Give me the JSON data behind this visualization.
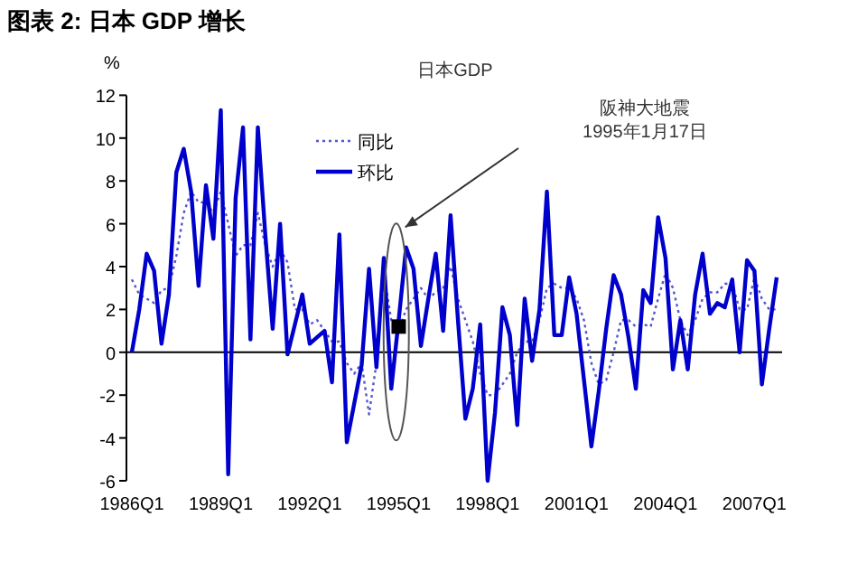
{
  "chart_data": {
    "type": "line",
    "title": "图表 2: 日本 GDP 增长",
    "subtitle": "日本GDP",
    "ylabel": "%",
    "categories": [
      "1986Q1",
      null,
      null,
      null,
      null,
      null,
      null,
      null,
      null,
      null,
      null,
      null,
      "1989Q1",
      null,
      null,
      null,
      null,
      null,
      null,
      null,
      null,
      null,
      null,
      null,
      "1992Q1",
      null,
      null,
      null,
      null,
      null,
      null,
      null,
      null,
      null,
      null,
      null,
      "1995Q1",
      null,
      null,
      null,
      null,
      null,
      null,
      null,
      null,
      null,
      null,
      null,
      "1998Q1",
      null,
      null,
      null,
      null,
      null,
      null,
      null,
      null,
      null,
      null,
      null,
      "2001Q1",
      null,
      null,
      null,
      null,
      null,
      null,
      null,
      null,
      null,
      null,
      null,
      "2004Q1",
      null,
      null,
      null,
      null,
      null,
      null,
      null,
      null,
      null,
      null,
      null,
      "2007Q1",
      null,
      null,
      null
    ],
    "series": [
      {
        "name": "同比",
        "color": "#5555cc",
        "line_style": "dotted",
        "values": [
          3.4,
          2.7,
          2.5,
          2.3,
          2.9,
          3.0,
          4.5,
          6.5,
          7.5,
          7.0,
          7.0,
          6.5,
          7.5,
          6.0,
          4.5,
          5.0,
          5.0,
          6.5,
          5.0,
          4.0,
          4.8,
          4.2,
          2.0,
          2.0,
          1.3,
          1.5,
          1.0,
          0.5,
          0.5,
          -0.5,
          -1.0,
          -0.5,
          -2.9,
          -0.5,
          3.7,
          1.5,
          1.0,
          2.0,
          2.5,
          3.0,
          2.5,
          2.8,
          3.0,
          4.0,
          2.5,
          1.5,
          0.5,
          -1.0,
          -2.0,
          -2.0,
          -1.5,
          -1.0,
          0.0,
          0.5,
          0.5,
          1.5,
          3.0,
          3.2,
          3.0,
          3.0,
          2.5,
          1.5,
          -0.5,
          -1.5,
          -1.3,
          0.0,
          1.5,
          1.5,
          1.2,
          1.3,
          1.2,
          2.5,
          3.7,
          3.0,
          1.5,
          0.8,
          1.5,
          2.5,
          2.8,
          2.8,
          3.2,
          3.2,
          2.0,
          2.0,
          3.5,
          2.5,
          2.0,
          2.0
        ]
      },
      {
        "name": "环比",
        "color": "#0000cc",
        "line_style": "solid",
        "values": [
          0,
          2.0,
          4.6,
          3.8,
          0.4,
          2.7,
          8.4,
          9.5,
          7.5,
          3.1,
          7.8,
          5.3,
          11.3,
          -5.7,
          7.2,
          10.5,
          0.6,
          10.5,
          5.5,
          1.1,
          6.0,
          -0.1,
          1.3,
          2.7,
          0.4,
          0.7,
          1.0,
          -1.4,
          5.5,
          -4.2,
          -2.4,
          -0.6,
          3.9,
          -0.7,
          4.4,
          -1.7,
          1.5,
          4.9,
          3.9,
          0.3,
          2.5,
          4.6,
          1.0,
          6.4,
          1.5,
          -3.1,
          -1.7,
          1.3,
          -6.0,
          -2.8,
          2.1,
          0.8,
          -3.4,
          2.5,
          -0.4,
          2.0,
          7.5,
          0.8,
          0.8,
          3.5,
          1.8,
          -1.3,
          -4.4,
          -1.8,
          1.1,
          3.6,
          2.7,
          0.7,
          -1.7,
          2.9,
          2.3,
          6.3,
          4.4,
          -0.8,
          1.5,
          -0.8,
          2.7,
          4.6,
          1.8,
          2.3,
          2.1,
          3.4,
          0,
          4.3,
          3.8,
          -1.5,
          1.1,
          3.5
        ]
      },
      {
        "type": "scatter",
        "color": "#000000",
        "marker": "square",
        "x": [
          "1995Q1"
        ],
        "values": [
          1.2
        ]
      }
    ],
    "ylim": [
      -6,
      12
    ],
    "yticks": [
      -6,
      -4,
      -2,
      0,
      2,
      4,
      6,
      8,
      10,
      12
    ],
    "ref_lines": [
      {
        "axis": "y",
        "value": 0,
        "color": "#000000"
      }
    ],
    "legend": "top left",
    "grid": false,
    "annotations": [
      "阪神大地震\n1995年1月17日"
    ]
  }
}
